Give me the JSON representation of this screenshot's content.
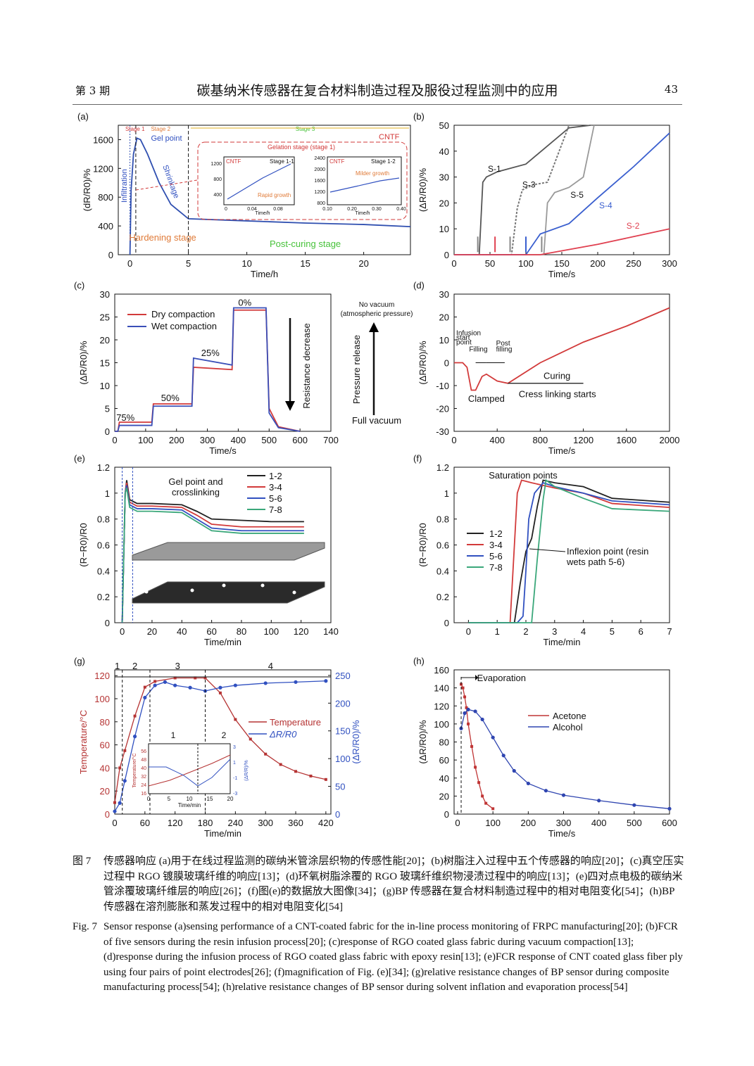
{
  "header": {
    "issue": "第 3 期",
    "title": "碳基纳米传感器在复合材料制造过程及服役过程监测中的应用",
    "page": "43"
  },
  "panels": {
    "a": {
      "label": "(a)",
      "ylabel": "(dR/R0)/%",
      "xlabel": "Time/h",
      "stage1": "Stage 1",
      "stage2": "Stage 2",
      "stage3": "Stage 3",
      "cntf": "CNTF",
      "gel": "Gel point",
      "infiltration": "Infiltration",
      "shrinkage": "Shrinkage",
      "hardening": "Hardening stage",
      "postcuring": "Post-curing stage",
      "gelation": "Gelation stage (stage 1)",
      "in1_tag": "CNTF",
      "in1_stage": "Stage 1-1",
      "in1_note": "Rapid growth",
      "in2_tag": "CNTF",
      "in2_stage": "Stage 1-2",
      "in2_note": "Milder growth",
      "inset_xlabel": "Time/h"
    },
    "b": {
      "label": "(b)",
      "ylabel": "(ΔR/R0)/%",
      "xlabel": "Time/s",
      "s1": "S-1",
      "s2": "S-2",
      "s3": "S-3",
      "s4": "S-4",
      "s5": "S-5"
    },
    "c": {
      "label": "(c)",
      "ylabel": "(ΔR/R0)/%",
      "xlabel": "Time/s",
      "leg1": "Dry compaction",
      "leg2": "Wet compaction",
      "p75": "75%",
      "p50": "50%",
      "p25": "25%",
      "p0": "0%",
      "resist": "Resistance decrease",
      "pressure": "Pressure release",
      "novac": "No vacuum",
      "atm": "(atmospheric pressure)",
      "fullvac": "Full vacuum"
    },
    "d": {
      "label": "(d)",
      "ylabel": "(ΔR/R0)/%",
      "xlabel": "Time/s",
      "infusion": "Infusion",
      "start": "start",
      "point": "point",
      "filling": "Filling",
      "post": "Post",
      "filling2": "filling",
      "curing": "Curing",
      "clamped": "Clamped",
      "cross": "Cress linking starts"
    },
    "e": {
      "label": "(e)",
      "ylabel": "(R−R0)/R0",
      "xlabel": "Time/min",
      "gel1": "Gel point and",
      "gel2": "crosslinking",
      "l1": "1-2",
      "l2": "3-4",
      "l3": "5-6",
      "l4": "7-8"
    },
    "f": {
      "label": "(f)",
      "ylabel": "(R−R0)/R0",
      "xlabel": "Time/min",
      "sat": "Saturation points",
      "infl1": "Inflexion point (resin",
      "infl2": "wets path 5-6)",
      "l1": "1-2",
      "l2": "3-4",
      "l3": "5-6",
      "l4": "7-8"
    },
    "g": {
      "label": "(g)",
      "ylabel": "Temperature/°C",
      "y2label": "(ΔR/R0)/%",
      "xlabel": "Time/min",
      "leg1": "Temperature",
      "leg2": "ΔR/R0",
      "st1": "1",
      "st2": "2",
      "st3": "3",
      "st4": "4",
      "inset_xlabel": "Time/min",
      "inset_ylabel": "Temperature/°C",
      "inset_y2": "(ΔR/R)/%"
    },
    "h": {
      "label": "(h)",
      "ylabel": "(ΔR/R0)/%",
      "xlabel": "Time/s",
      "evap": "Evaporation",
      "leg1": "Acetone",
      "leg2": "Alcohol"
    }
  },
  "chart_data": [
    {
      "panel": "a",
      "type": "line",
      "xlim": [
        -1,
        24
      ],
      "ylim": [
        0,
        1800
      ],
      "xticks": [
        0,
        5,
        10,
        15,
        20
      ],
      "yticks": [
        0,
        400,
        800,
        1200,
        1600
      ],
      "series": [
        {
          "x": [
            0,
            0.1,
            0.3,
            0.6,
            0.9,
            1.5,
            2.5,
            3.5,
            5,
            10,
            15,
            20,
            24
          ],
          "y": [
            0,
            900,
            1400,
            1620,
            1600,
            1400,
            1000,
            700,
            500,
            470,
            440,
            420,
            390
          ]
        }
      ]
    },
    {
      "panel": "b",
      "type": "line",
      "xlim": [
        0,
        300
      ],
      "ylim": [
        0,
        50
      ],
      "xticks": [
        0,
        50,
        100,
        150,
        200,
        250,
        300
      ],
      "yticks": [
        0,
        10,
        20,
        30,
        40,
        50
      ],
      "series": [
        {
          "name": "S-1",
          "x": [
            0,
            35,
            40,
            45,
            60,
            100,
            130,
            160,
            190
          ],
          "y": [
            0,
            0,
            28,
            30,
            32,
            35,
            42,
            49,
            50
          ]
        },
        {
          "name": "S-3",
          "x": [
            0,
            80,
            88,
            95,
            110,
            130,
            160
          ],
          "y": [
            0,
            0,
            18,
            25,
            27,
            28,
            50
          ]
        },
        {
          "name": "S-5",
          "x": [
            0,
            125,
            130,
            140,
            160,
            180,
            195
          ],
          "y": [
            0,
            0,
            20,
            24,
            26,
            30,
            50
          ]
        },
        {
          "name": "S-4",
          "x": [
            0,
            100,
            120,
            160,
            200,
            250,
            300
          ],
          "y": [
            0,
            0,
            8,
            12,
            22,
            34,
            47
          ]
        },
        {
          "name": "S-2",
          "x": [
            0,
            120,
            160,
            200,
            250,
            300
          ],
          "y": [
            0,
            0,
            2,
            4,
            7,
            10
          ]
        }
      ]
    },
    {
      "panel": "c",
      "type": "line",
      "xlim": [
        0,
        700
      ],
      "ylim": [
        0,
        30
      ],
      "xticks": [
        0,
        100,
        200,
        300,
        400,
        500,
        600,
        700
      ],
      "yticks": [
        0,
        5,
        10,
        15,
        20,
        25,
        30
      ],
      "series": [
        {
          "name": "Dry compaction",
          "x": [
            0,
            10,
            15,
            120,
            125,
            250,
            255,
            380,
            385,
            490,
            500,
            530,
            600
          ],
          "y": [
            0,
            0,
            2,
            2,
            6,
            6,
            14,
            13.5,
            26.5,
            26.5,
            5,
            1,
            0
          ]
        },
        {
          "name": "Wet compaction",
          "x": [
            0,
            10,
            15,
            120,
            125,
            250,
            255,
            380,
            385,
            490,
            500,
            530,
            600
          ],
          "y": [
            0,
            0,
            1.3,
            1.3,
            5.5,
            5.5,
            16,
            14.5,
            27,
            27,
            4,
            0.8,
            0
          ]
        }
      ]
    },
    {
      "panel": "d",
      "type": "line",
      "xlim": [
        0,
        2000
      ],
      "ylim": [
        -30,
        30
      ],
      "xticks": [
        0,
        400,
        800,
        1200,
        1600,
        2000
      ],
      "yticks": [
        -30,
        -20,
        -10,
        0,
        10,
        20,
        30
      ],
      "series": [
        {
          "x": [
            0,
            80,
            120,
            160,
            200,
            260,
            300,
            400,
            500,
            800,
            1200,
            1600,
            2000
          ],
          "y": [
            0,
            0,
            -2,
            -12,
            -12,
            -6,
            -5,
            -8,
            -9,
            0,
            9,
            16,
            24
          ]
        }
      ]
    },
    {
      "panel": "e",
      "type": "line",
      "xlim": [
        -5,
        140
      ],
      "ylim": [
        0,
        1.2
      ],
      "xticks": [
        0,
        20,
        40,
        60,
        80,
        100,
        120,
        140
      ],
      "yticks": [
        0,
        0.2,
        0.4,
        0.6,
        0.8,
        1.0,
        1.2
      ],
      "series": [
        {
          "name": "1-2",
          "x": [
            0,
            2,
            3,
            5,
            10,
            20,
            40,
            50,
            60,
            80,
            100,
            122
          ],
          "y": [
            0,
            1.0,
            1.1,
            0.95,
            0.92,
            0.92,
            0.91,
            0.86,
            0.8,
            0.79,
            0.78,
            0.78
          ]
        },
        {
          "name": "3-4",
          "x": [
            0,
            2,
            3,
            5,
            10,
            20,
            40,
            50,
            60,
            80,
            100,
            122
          ],
          "y": [
            0,
            1.0,
            1.08,
            0.93,
            0.9,
            0.9,
            0.89,
            0.83,
            0.76,
            0.74,
            0.74,
            0.74
          ]
        },
        {
          "name": "5-6",
          "x": [
            0,
            2,
            3,
            5,
            10,
            20,
            40,
            50,
            60,
            80,
            100,
            122
          ],
          "y": [
            0,
            1.0,
            1.06,
            0.91,
            0.88,
            0.88,
            0.87,
            0.8,
            0.73,
            0.71,
            0.71,
            0.71
          ]
        },
        {
          "name": "7-8",
          "x": [
            0,
            2,
            3,
            5,
            10,
            20,
            40,
            50,
            60,
            80,
            100,
            122
          ],
          "y": [
            0,
            1.0,
            1.04,
            0.89,
            0.86,
            0.86,
            0.85,
            0.78,
            0.71,
            0.69,
            0.69,
            0.69
          ]
        }
      ]
    },
    {
      "panel": "f",
      "type": "line",
      "xlim": [
        -0.5,
        7
      ],
      "ylim": [
        0,
        1.2
      ],
      "xticks": [
        0,
        1,
        2,
        3,
        4,
        5,
        6,
        7
      ],
      "yticks": [
        0,
        0.2,
        0.4,
        0.6,
        0.8,
        1.0,
        1.2
      ],
      "series": [
        {
          "name": "1-2",
          "x": [
            0,
            1.6,
            1.8,
            2.0,
            2.2,
            2.4,
            2.6,
            3,
            4,
            5,
            7
          ],
          "y": [
            0,
            0,
            0.3,
            0.55,
            0.65,
            0.9,
            1.1,
            1.08,
            1.05,
            0.96,
            0.93
          ]
        },
        {
          "name": "3-4",
          "x": [
            0,
            1.45,
            1.6,
            1.7,
            1.85,
            2.2,
            3,
            4,
            5,
            7
          ],
          "y": [
            0,
            0,
            0.6,
            1.0,
            1.1,
            1.08,
            1.04,
            1.0,
            0.92,
            0.89
          ]
        },
        {
          "name": "5-6",
          "x": [
            0,
            1.7,
            1.9,
            2.0,
            2.1,
            2.3,
            2.6,
            3,
            4,
            5,
            7
          ],
          "y": [
            0,
            0,
            0.05,
            0.4,
            0.8,
            1.0,
            1.08,
            1.05,
            1.0,
            0.94,
            0.91
          ]
        },
        {
          "name": "7-8",
          "x": [
            0,
            2.2,
            2.4,
            2.6,
            2.7,
            3,
            4,
            5,
            7
          ],
          "y": [
            0,
            0,
            0.5,
            0.95,
            1.1,
            1.05,
            0.96,
            0.88,
            0.86
          ]
        }
      ]
    },
    {
      "panel": "g",
      "type": "line",
      "xlim": [
        0,
        430
      ],
      "ylim": [
        0,
        125
      ],
      "y2lim": [
        0,
        260
      ],
      "xticks": [
        0,
        60,
        120,
        180,
        240,
        300,
        360,
        420
      ],
      "yticks": [
        0,
        20,
        40,
        60,
        80,
        100,
        120
      ],
      "y2ticks": [
        0,
        50,
        100,
        150,
        200,
        250
      ],
      "series": [
        {
          "name": "Temperature",
          "x": [
            0,
            10,
            20,
            40,
            60,
            80,
            120,
            160,
            180,
            210,
            240,
            270,
            300,
            330,
            360,
            390,
            420
          ],
          "y": [
            10,
            40,
            55,
            85,
            110,
            115,
            118,
            118,
            118,
            105,
            82,
            65,
            52,
            43,
            37,
            33,
            30
          ]
        },
        {
          "name": "ΔR/R0",
          "axis": "y2",
          "x": [
            0,
            10,
            20,
            40,
            60,
            80,
            100,
            120,
            150,
            180,
            210,
            240,
            300,
            360,
            420
          ],
          "y": [
            5,
            20,
            60,
            140,
            210,
            232,
            238,
            232,
            228,
            222,
            228,
            232,
            236,
            238,
            240
          ]
        }
      ]
    },
    {
      "panel": "h",
      "type": "line",
      "xlim": [
        -10,
        600
      ],
      "ylim": [
        0,
        160
      ],
      "xticks": [
        0,
        100,
        200,
        300,
        400,
        500,
        600
      ],
      "yticks": [
        0,
        20,
        40,
        60,
        80,
        100,
        120,
        140,
        160
      ],
      "series": [
        {
          "name": "Acetone",
          "x": [
            10,
            15,
            20,
            25,
            30,
            40,
            50,
            60,
            70,
            80,
            100
          ],
          "y": [
            144,
            140,
            130,
            118,
            100,
            75,
            52,
            35,
            20,
            12,
            6
          ]
        },
        {
          "name": "Alcohol",
          "x": [
            10,
            20,
            30,
            50,
            70,
            100,
            130,
            160,
            200,
            250,
            300,
            400,
            500,
            600
          ],
          "y": [
            95,
            112,
            116,
            114,
            105,
            85,
            65,
            48,
            34,
            26,
            21,
            15,
            10,
            6
          ]
        }
      ]
    }
  ],
  "caption": {
    "cn_label": "图 7",
    "cn_text": "传感器响应 (a)用于在线过程监测的碳纳米管涂层织物的传感性能[20]；(b)树脂注入过程中五个传感器的响应[20]；(c)真空压实过程中 RGO 镀膜玻璃纤维的响应[13]；(d)环氧树脂涂覆的 RGO 玻璃纤维织物浸渍过程中的响应[13]；(e)四对点电极的碳纳米管涂覆玻璃纤维层的响应[26]；(f)图(e)的数据放大图像[34]；(g)BP 传感器在复合材料制造过程中的相对电阻变化[54]；(h)BP 传感器在溶剂膨胀和蒸发过程中的相对电阻变化[54]",
    "en_label": "Fig. 7",
    "en_text": "Sensor response (a)sensing performance of a CNT-coated fabric for the in-line process monitoring of FRPC manufacturing[20]; (b)FCR of five sensors during the resin infusion process[20]; (c)response of RGO coated glass fabric during vacuum compaction[13]; (d)response during the infusion process of RGO coated glass fabric with epoxy resin[13]; (e)FCR response of CNT coated glass fiber ply using four pairs of point electrodes[26]; (f)magnification of Fig. (e)[34]; (g)relative resistance changes of BP sensor during composite manufacturing process[54]; (h)relative resistance changes of BP sensor during solvent inflation and evaporation process[54]"
  },
  "colors": {
    "red": "#d23a3a",
    "blue": "#3050c0",
    "green": "#3aa77a",
    "dark": "#222222",
    "gray": "#888888",
    "orange": "#e07b39",
    "lime": "#47c23a"
  }
}
